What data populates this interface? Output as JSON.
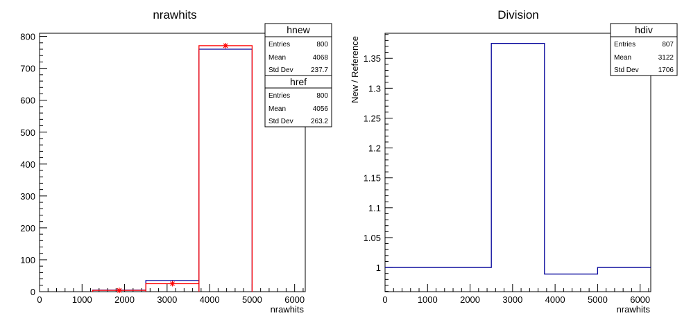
{
  "chart_data": [
    {
      "type": "histogram",
      "title": "nrawhits",
      "xlabel": "nrawhits",
      "ylabel": "",
      "xlim": [
        0,
        6250
      ],
      "ylim": [
        0,
        810
      ],
      "xticks": [
        "0",
        "1000",
        "2000",
        "3000",
        "4000",
        "5000",
        "6000"
      ],
      "xtick_values": [
        0,
        1000,
        2000,
        3000,
        4000,
        5000,
        6000
      ],
      "yticks": [
        "0",
        "100",
        "200",
        "300",
        "400",
        "500",
        "600",
        "700",
        "800"
      ],
      "ytick_values": [
        0,
        100,
        200,
        300,
        400,
        500,
        600,
        700,
        800
      ],
      "bin_edges": [
        0,
        1250,
        2500,
        3750,
        5000,
        6250
      ],
      "series": [
        {
          "name": "hnew",
          "values": [
            0,
            4,
            25,
            771,
            0
          ],
          "color": "#ff0000",
          "style": "steps with star markers"
        },
        {
          "name": "href",
          "values": [
            0,
            5,
            35,
            760,
            0
          ],
          "color": "#000099",
          "style": "steps"
        }
      ],
      "stats": [
        {
          "name": "hnew",
          "rows": [
            {
              "label": "Entries",
              "value": "800"
            },
            {
              "label": "Mean",
              "value": "4068"
            },
            {
              "label": "Std Dev",
              "value": "237.7"
            }
          ]
        },
        {
          "name": "href",
          "rows": [
            {
              "label": "Entries",
              "value": "800"
            },
            {
              "label": "Mean",
              "value": "4056"
            },
            {
              "label": "Std Dev",
              "value": "263.2"
            }
          ]
        }
      ]
    },
    {
      "type": "histogram",
      "title": "Division",
      "xlabel": "nrawhits",
      "ylabel": "New / Reference",
      "xlim": [
        0,
        6250
      ],
      "ylim": [
        0.9595,
        1.392
      ],
      "xticks": [
        "0",
        "1000",
        "2000",
        "3000",
        "4000",
        "5000",
        "6000"
      ],
      "xtick_values": [
        0,
        1000,
        2000,
        3000,
        4000,
        5000,
        6000
      ],
      "yticks": [
        "1",
        "1.05",
        "1.1",
        "1.15",
        "1.2",
        "1.25",
        "1.3",
        "1.35"
      ],
      "ytick_values": [
        1,
        1.05,
        1.1,
        1.15,
        1.2,
        1.25,
        1.3,
        1.35
      ],
      "bin_edges": [
        0,
        1250,
        2500,
        3750,
        5000,
        6250
      ],
      "series": [
        {
          "name": "hdiv",
          "values": [
            1,
            1,
            1.375,
            0.989,
            1
          ],
          "color": "#000099",
          "style": "steps"
        }
      ],
      "stats": [
        {
          "name": "hdiv",
          "rows": [
            {
              "label": "Entries",
              "value": "807"
            },
            {
              "label": "Mean",
              "value": "3122"
            },
            {
              "label": "Std Dev",
              "value": "1706"
            }
          ]
        }
      ]
    }
  ]
}
